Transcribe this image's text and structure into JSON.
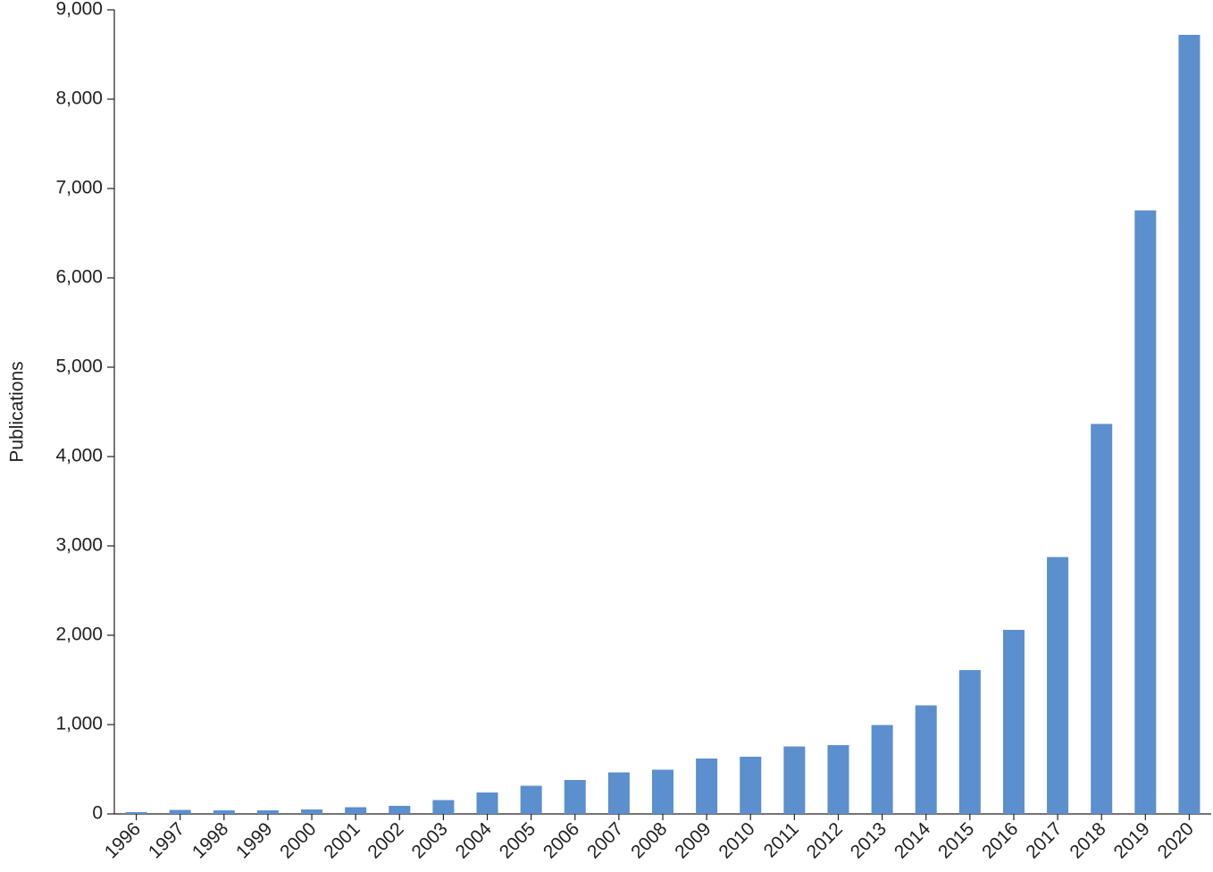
{
  "chart_data": {
    "type": "bar",
    "y_label": "Publications",
    "categories": [
      "1996",
      "1997",
      "1998",
      "1999",
      "2000",
      "2001",
      "2002",
      "2003",
      "2004",
      "2005",
      "2006",
      "2007",
      "2008",
      "2009",
      "2010",
      "2011",
      "2012",
      "2013",
      "2014",
      "2015",
      "2016",
      "2017",
      "2018",
      "2019",
      "2020"
    ],
    "values": [
      20,
      45,
      40,
      40,
      50,
      75,
      90,
      155,
      240,
      315,
      380,
      465,
      495,
      620,
      640,
      755,
      770,
      995,
      1215,
      1610,
      2060,
      2875,
      4365,
      6755,
      8720
    ],
    "color": "#5b8fcd",
    "ylim": [
      0,
      9000
    ],
    "yticks": [
      0,
      {
        "value": 1000,
        "label": "1,000"
      },
      {
        "value": 2000,
        "label": "2,000"
      },
      {
        "value": 3000,
        "label": "3,000"
      },
      {
        "value": 4000,
        "label": "4,000"
      },
      {
        "value": 5000,
        "label": "5,000"
      },
      {
        "value": 6000,
        "label": "6,000"
      },
      {
        "value": 7000,
        "label": "7,000"
      },
      {
        "value": 8000,
        "label": "8,000"
      },
      {
        "value": 9000,
        "label": "9,000"
      }
    ],
    "grid": false
  }
}
